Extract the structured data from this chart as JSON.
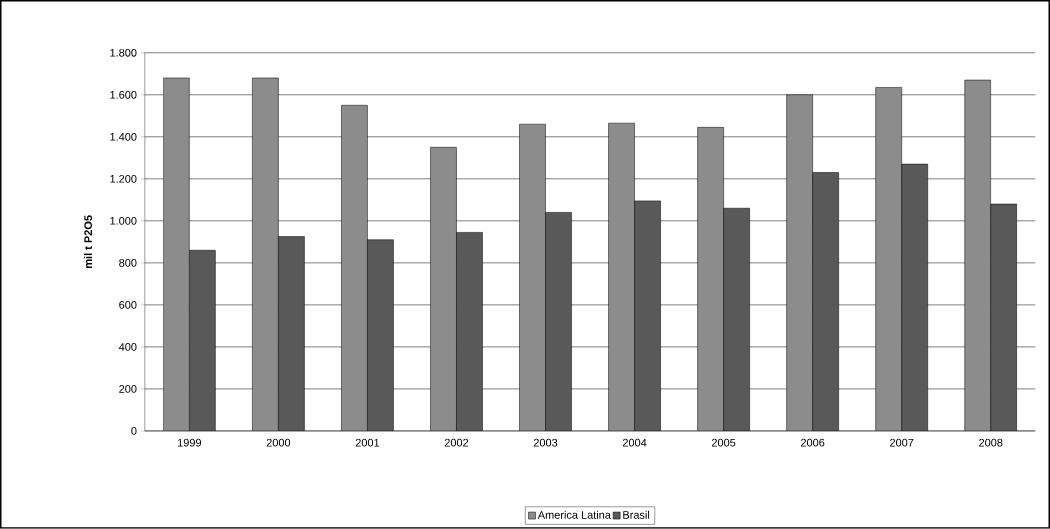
{
  "chart_data": {
    "type": "bar",
    "ylabel": "mil t P2O5",
    "categories": [
      "1999",
      "2000",
      "2001",
      "2002",
      "2003",
      "2004",
      "2005",
      "2006",
      "2007",
      "2008"
    ],
    "series": [
      {
        "name": "America Latina",
        "color": "#8c8c8c",
        "values": [
          1680,
          1680,
          1550,
          1350,
          1460,
          1465,
          1445,
          1600,
          1635,
          1670
        ]
      },
      {
        "name": "Brasil",
        "color": "#595959",
        "values": [
          860,
          925,
          910,
          945,
          1040,
          1095,
          1060,
          1230,
          1270,
          1080
        ]
      }
    ],
    "ylim": [
      0,
      1800
    ],
    "yticks": [
      0,
      200,
      400,
      600,
      800,
      {
        "value": 1000,
        "label": "1.000"
      },
      {
        "value": 1200,
        "label": "1.200"
      },
      {
        "value": 1400,
        "label": "1.400"
      },
      {
        "value": 1600,
        "label": "1.600"
      },
      {
        "value": 1800,
        "label": "1.800"
      }
    ],
    "grid": "y",
    "legend": "bottom"
  }
}
